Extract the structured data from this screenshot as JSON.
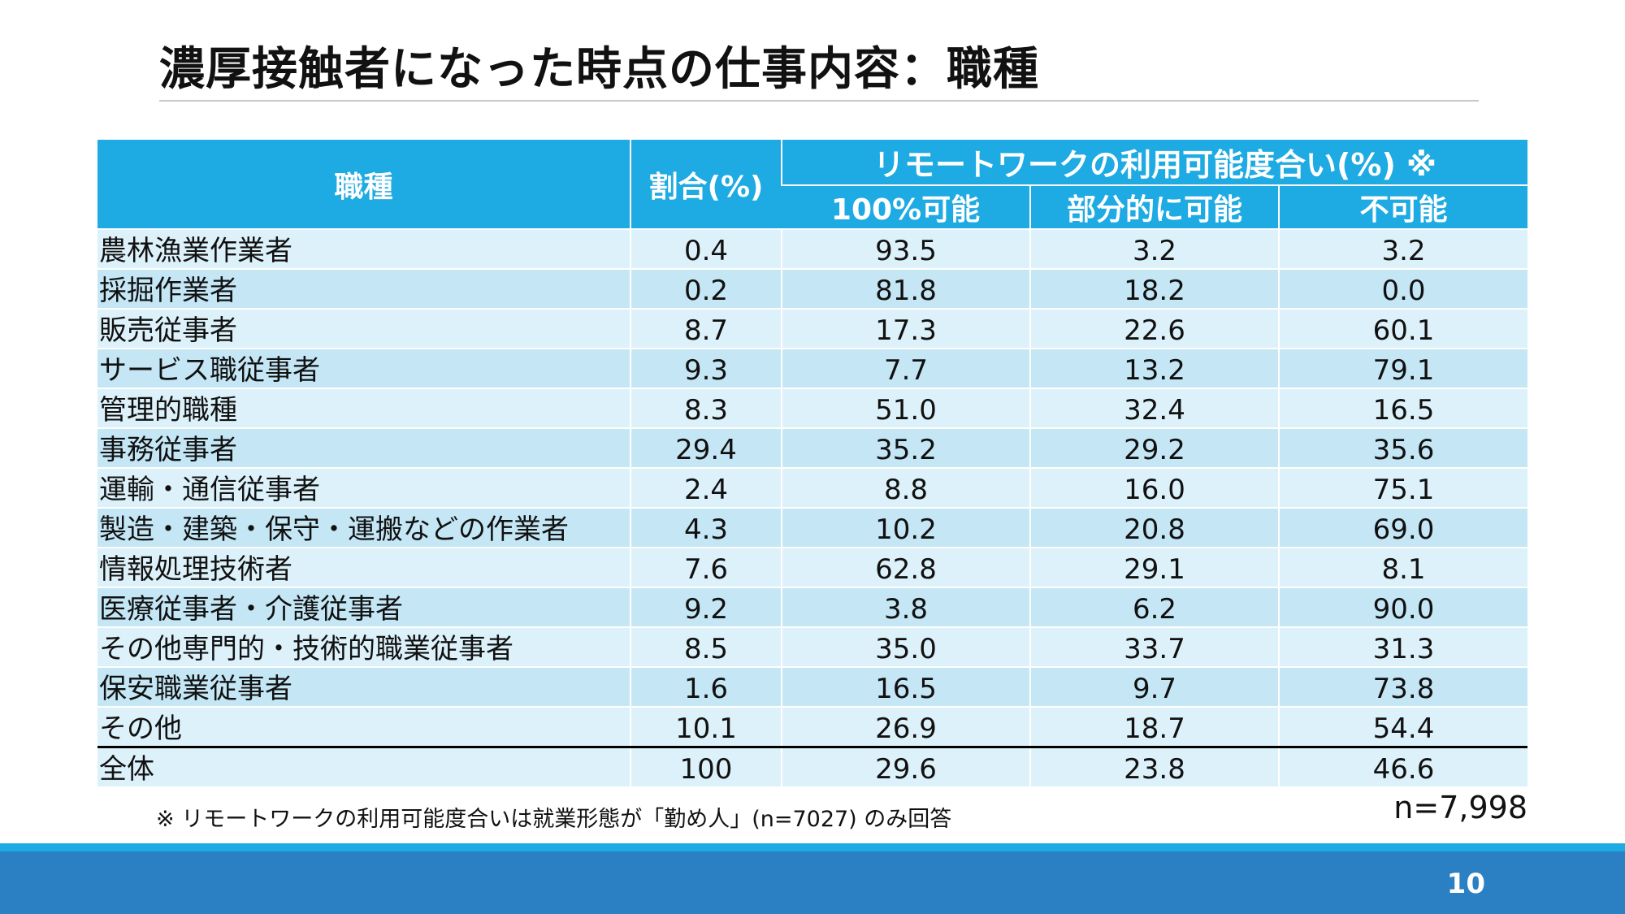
{
  "title": "濃厚接触者になった時点の仕事内容：職種",
  "table": {
    "header": {
      "col_occupation": "職種",
      "col_share": "割合(%)",
      "group_label": "リモートワークの利用可能度合い(%) ※",
      "sub_full": "100%可能",
      "sub_partial": "部分的に可能",
      "sub_none": "不可能"
    },
    "rows": [
      {
        "name": "農林漁業作業者",
        "share": "0.4",
        "full": "93.5",
        "partial": "3.2",
        "none": "3.2"
      },
      {
        "name": "採掘作業者",
        "share": "0.2",
        "full": "81.8",
        "partial": "18.2",
        "none": "0.0"
      },
      {
        "name": "販売従事者",
        "share": "8.7",
        "full": "17.3",
        "partial": "22.6",
        "none": "60.1"
      },
      {
        "name": "サービス職従事者",
        "share": "9.3",
        "full": "7.7",
        "partial": "13.2",
        "none": "79.1"
      },
      {
        "name": "管理的職種",
        "share": "8.3",
        "full": "51.0",
        "partial": "32.4",
        "none": "16.5"
      },
      {
        "name": "事務従事者",
        "share": "29.4",
        "full": "35.2",
        "partial": "29.2",
        "none": "35.6"
      },
      {
        "name": "運輸・通信従事者",
        "share": "2.4",
        "full": "8.8",
        "partial": "16.0",
        "none": "75.1"
      },
      {
        "name": "製造・建築・保守・運搬などの作業者",
        "share": "4.3",
        "full": "10.2",
        "partial": "20.8",
        "none": "69.0"
      },
      {
        "name": "情報処理技術者",
        "share": "7.6",
        "full": "62.8",
        "partial": "29.1",
        "none": "8.1"
      },
      {
        "name": "医療従事者・介護従事者",
        "share": "9.2",
        "full": "3.8",
        "partial": "6.2",
        "none": "90.0"
      },
      {
        "name": "その他専門的・技術的職業従事者",
        "share": "8.5",
        "full": "35.0",
        "partial": "33.7",
        "none": "31.3"
      },
      {
        "name": "保安職業従事者",
        "share": "1.6",
        "full": "16.5",
        "partial": "9.7",
        "none": "73.8"
      },
      {
        "name": "その他",
        "share": "10.1",
        "full": "26.9",
        "partial": "18.7",
        "none": "54.4"
      }
    ],
    "total": {
      "name": "全体",
      "share": "100",
      "full": "29.6",
      "partial": "23.8",
      "none": "46.6"
    }
  },
  "footnote": "※ リモートワークの利用可能度合いは就業形態が「勤め人」(n=7027) のみ回答",
  "sample_size": "n=7,998",
  "page_number": "10",
  "colors": {
    "header_bg": "#1eaae2",
    "row_light": "#ddf1fa",
    "row_dark": "#c4e6f5",
    "footer_bar": "#2a80c3"
  }
}
